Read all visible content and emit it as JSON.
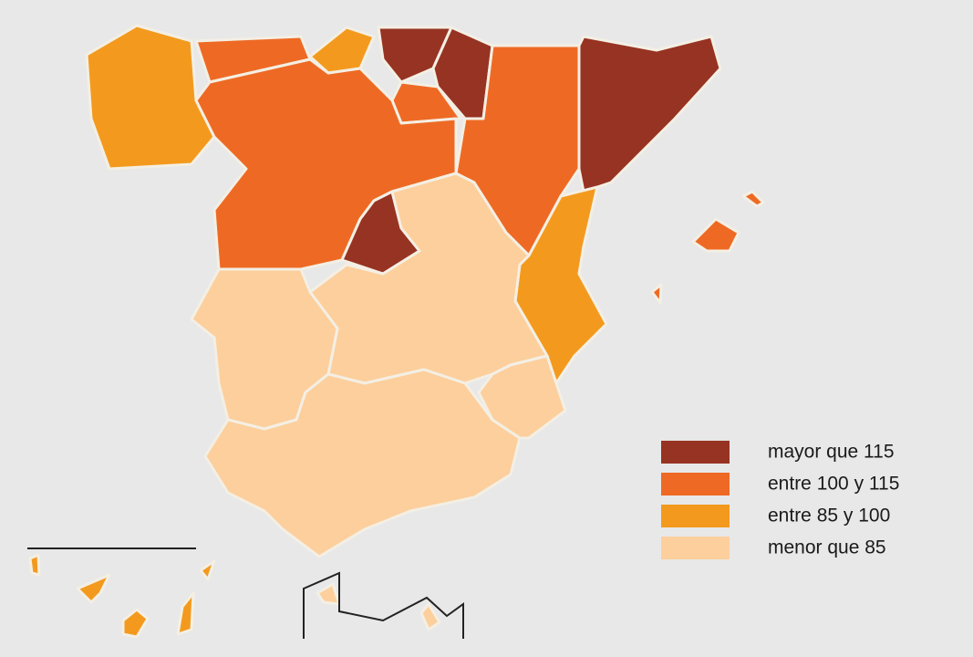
{
  "legend": {
    "items": [
      {
        "label": "mayor que 115",
        "color": "#973322"
      },
      {
        "label": "entre 100 y 115",
        "color": "#ee6a24"
      },
      {
        "label": "entre 85 y 100",
        "color": "#f39a1e"
      },
      {
        "label": "menor que 85",
        "color": "#fccf9c"
      }
    ]
  }
}
